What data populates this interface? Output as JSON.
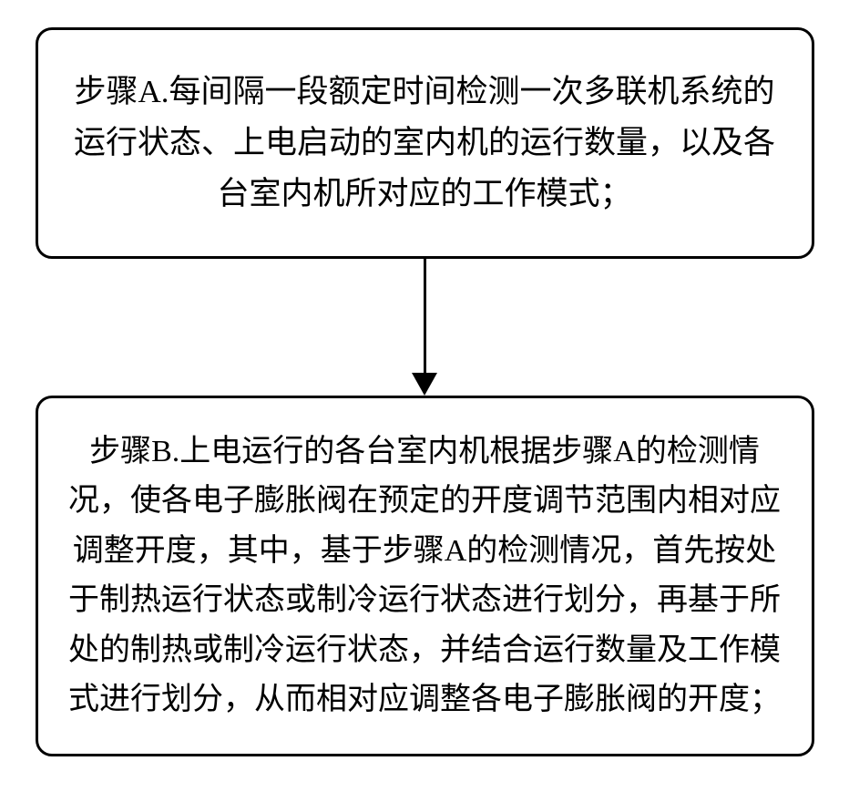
{
  "flowchart": {
    "type": "flowchart",
    "background_color": "#ffffff",
    "border_color": "#000000",
    "text_color": "#000000",
    "border_width": 3,
    "border_radius": 18,
    "arrow_color": "#000000",
    "nodes": [
      {
        "id": "A",
        "text": "步骤A.每间隔一段额定时间检测一次多联机系统的运行状态、上电启动的室内机的运行数量，以及各台室内机所对应的工作模式；",
        "fontsize": 35
      },
      {
        "id": "B",
        "text": "步骤B.上电运行的各台室内机根据步骤A的检测情况，使各电子膨胀阀在预定的开度调节范围内相对应调整开度，其中，基于步骤A的检测情况，首先按处于制热运行状态或制冷运行状态进行划分，再基于所处的制热或制冷运行状态，并结合运行数量及工作模式进行划分，从而相对应调整各电子膨胀阀的开度；",
        "fontsize": 34
      }
    ],
    "edges": [
      {
        "from": "A",
        "to": "B",
        "arrow_length": 150
      }
    ]
  }
}
